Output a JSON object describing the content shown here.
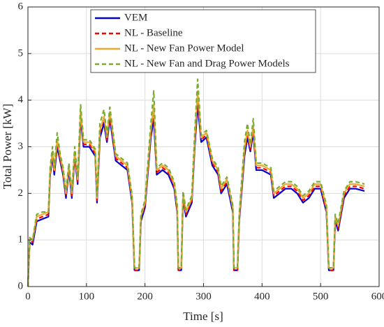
{
  "chart_data": {
    "type": "line",
    "xlabel": "Time [s]",
    "ylabel": "Total Power [kW]",
    "xlim": [
      0,
      600
    ],
    "xticks": [
      0,
      100,
      200,
      300,
      400,
      500,
      600
    ],
    "ylim": [
      0,
      6
    ],
    "yticks": [
      0,
      1,
      2,
      3,
      4,
      5,
      6
    ],
    "grid": true,
    "legend": "upper left",
    "x": [
      0,
      3,
      8,
      15,
      25,
      35,
      38,
      42,
      45,
      50,
      55,
      60,
      65,
      70,
      75,
      80,
      85,
      90,
      95,
      105,
      115,
      118,
      123,
      130,
      135,
      140,
      150,
      160,
      170,
      178,
      182,
      190,
      193,
      200,
      210,
      215,
      220,
      230,
      240,
      250,
      255,
      257,
      262,
      265,
      270,
      280,
      285,
      290,
      296,
      305,
      315,
      325,
      330,
      340,
      350,
      352,
      358,
      361,
      370,
      375,
      380,
      385,
      390,
      400,
      415,
      420,
      430,
      440,
      450,
      460,
      470,
      480,
      490,
      500,
      510,
      514,
      522,
      525,
      530,
      540,
      550,
      560,
      575
    ],
    "series": [
      {
        "name": "VEM",
        "color": "#0000d0",
        "style": "solid",
        "values": [
          0,
          0.95,
          0.9,
          1.4,
          1.45,
          1.5,
          2.4,
          2.8,
          2.4,
          3.0,
          2.7,
          2.4,
          1.9,
          2.5,
          1.9,
          2.8,
          2.2,
          3.6,
          3.0,
          3.0,
          2.8,
          1.8,
          3.2,
          3.5,
          3.1,
          3.6,
          2.7,
          2.6,
          2.5,
          1.8,
          0.35,
          0.35,
          1.4,
          1.7,
          3.2,
          3.6,
          2.4,
          2.5,
          2.4,
          2.1,
          1.6,
          0.35,
          0.35,
          1.9,
          1.5,
          1.8,
          3.0,
          3.9,
          3.1,
          3.2,
          2.6,
          2.4,
          2.0,
          2.2,
          1.6,
          0.35,
          0.35,
          1.4,
          2.8,
          3.2,
          2.9,
          3.3,
          2.5,
          2.5,
          2.4,
          1.9,
          2.0,
          2.1,
          2.1,
          2.0,
          1.8,
          1.9,
          2.1,
          2.1,
          1.6,
          0.35,
          0.35,
          1.4,
          1.2,
          1.9,
          2.1,
          2.1,
          2.05
        ]
      },
      {
        "name": "NL - Baseline",
        "color": "#ff0000",
        "style": "dashed",
        "values": [
          0,
          1.0,
          0.95,
          1.45,
          1.5,
          1.55,
          2.45,
          2.85,
          2.45,
          3.1,
          2.75,
          2.45,
          1.95,
          2.55,
          1.95,
          2.85,
          2.25,
          3.7,
          3.05,
          3.05,
          2.85,
          1.85,
          3.3,
          3.6,
          3.15,
          3.7,
          2.75,
          2.65,
          2.55,
          1.85,
          0.35,
          0.35,
          1.45,
          1.75,
          3.3,
          3.8,
          2.45,
          2.55,
          2.45,
          2.15,
          1.65,
          0.35,
          0.35,
          1.95,
          1.55,
          1.85,
          3.1,
          4.1,
          3.15,
          3.25,
          2.65,
          2.45,
          2.05,
          2.25,
          1.65,
          0.35,
          0.35,
          1.45,
          2.9,
          3.3,
          2.95,
          3.4,
          2.55,
          2.55,
          2.45,
          1.95,
          2.05,
          2.15,
          2.15,
          2.05,
          1.85,
          1.95,
          2.15,
          2.15,
          1.65,
          0.35,
          0.35,
          1.45,
          1.25,
          1.95,
          2.15,
          2.15,
          2.1
        ]
      },
      {
        "name": "NL - New Fan Power Model",
        "color": "#f0a830",
        "style": "solid",
        "values": [
          0,
          1.05,
          1.0,
          1.5,
          1.55,
          1.6,
          2.5,
          2.9,
          2.5,
          3.15,
          2.8,
          2.5,
          2.0,
          2.6,
          2.0,
          2.9,
          2.3,
          3.75,
          3.1,
          3.1,
          2.9,
          1.9,
          3.35,
          3.65,
          3.2,
          3.75,
          2.8,
          2.7,
          2.6,
          1.9,
          0.4,
          0.4,
          1.5,
          1.8,
          3.35,
          3.9,
          2.5,
          2.6,
          2.5,
          2.2,
          1.7,
          0.4,
          0.4,
          2.0,
          1.6,
          1.9,
          3.15,
          4.2,
          3.2,
          3.3,
          2.7,
          2.5,
          2.1,
          2.3,
          1.7,
          0.4,
          0.4,
          1.5,
          2.95,
          3.35,
          3.0,
          3.45,
          2.6,
          2.6,
          2.5,
          2.0,
          2.1,
          2.2,
          2.2,
          2.1,
          1.9,
          2.0,
          2.2,
          2.2,
          1.7,
          0.4,
          0.4,
          1.5,
          1.3,
          2.0,
          2.2,
          2.2,
          2.15
        ]
      },
      {
        "name": "NL - New Fan and Drag Power Models",
        "color": "#77ac30",
        "style": "dashed",
        "values": [
          0,
          1.05,
          1.0,
          1.55,
          1.6,
          1.6,
          2.55,
          3.0,
          2.55,
          3.3,
          2.85,
          2.55,
          2.05,
          2.65,
          2.05,
          3.0,
          2.35,
          3.9,
          3.15,
          3.15,
          2.95,
          1.95,
          3.5,
          3.8,
          3.25,
          3.85,
          2.85,
          2.75,
          2.65,
          1.95,
          0.4,
          0.4,
          1.55,
          1.85,
          3.5,
          4.2,
          2.55,
          2.65,
          2.55,
          2.25,
          1.75,
          0.4,
          0.4,
          2.05,
          1.65,
          1.95,
          3.3,
          4.45,
          3.25,
          3.35,
          2.75,
          2.55,
          2.15,
          2.35,
          1.75,
          0.4,
          0.4,
          1.55,
          3.1,
          3.5,
          3.05,
          3.6,
          2.65,
          2.65,
          2.55,
          2.05,
          2.15,
          2.25,
          2.25,
          2.15,
          1.95,
          2.05,
          2.25,
          2.25,
          1.75,
          0.4,
          0.4,
          1.55,
          1.35,
          2.05,
          2.25,
          2.25,
          2.2
        ]
      }
    ]
  }
}
